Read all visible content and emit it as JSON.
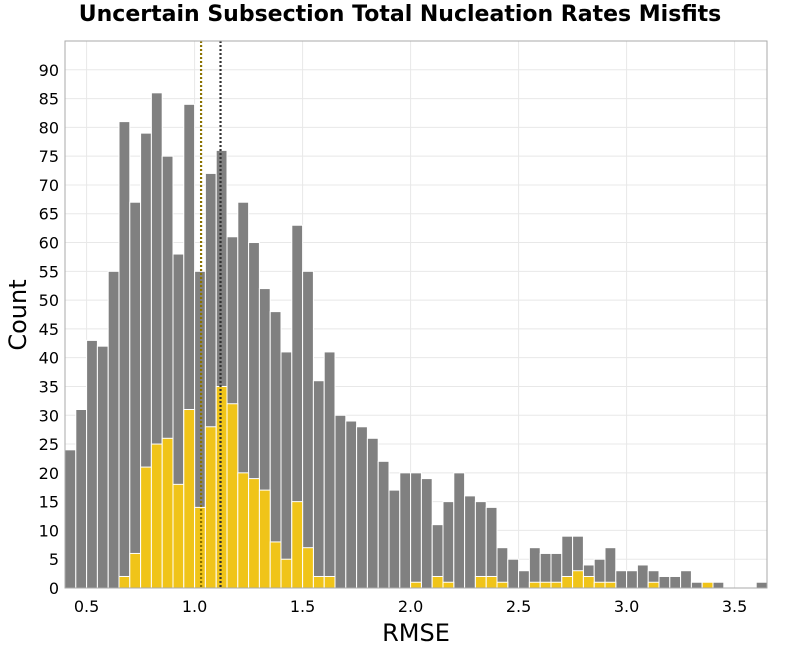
{
  "chart_data": {
    "type": "bar",
    "title": "Uncertain Subsection Total Nucleation Rates Misfits",
    "xlabel": "RMSE",
    "ylabel": "Count",
    "xlim": [
      0.4,
      3.65
    ],
    "ylim": [
      0,
      95
    ],
    "grid": true,
    "bin_width": 0.05,
    "x_ticks": [
      0.5,
      1.0,
      1.5,
      2.0,
      2.5,
      3.0,
      3.5
    ],
    "x_tick_labels": [
      "0.5",
      "1.0",
      "1.5",
      "2.0",
      "2.5",
      "3.0",
      "3.5"
    ],
    "y_ticks": [
      0,
      5,
      10,
      15,
      20,
      25,
      30,
      35,
      40,
      45,
      50,
      55,
      60,
      65,
      70,
      75,
      80,
      85,
      90
    ],
    "y_tick_labels": [
      "0",
      "5",
      "10",
      "15",
      "20",
      "25",
      "30",
      "35",
      "40",
      "45",
      "50",
      "55",
      "60",
      "65",
      "70",
      "75",
      "80",
      "85",
      "90"
    ],
    "bin_starts": [
      0.4,
      0.45,
      0.5,
      0.55,
      0.6,
      0.65,
      0.7,
      0.75,
      0.8,
      0.85,
      0.9,
      0.95,
      1.0,
      1.05,
      1.1,
      1.15,
      1.2,
      1.25,
      1.3,
      1.35,
      1.4,
      1.45,
      1.5,
      1.55,
      1.6,
      1.65,
      1.7,
      1.75,
      1.8,
      1.85,
      1.9,
      1.95,
      2.0,
      2.05,
      2.1,
      2.15,
      2.2,
      2.25,
      2.3,
      2.35,
      2.4,
      2.45,
      2.5,
      2.55,
      2.6,
      2.65,
      2.7,
      2.75,
      2.8,
      2.85,
      2.9,
      2.95,
      3.0,
      3.05,
      3.1,
      3.15,
      3.2,
      3.25,
      3.3,
      3.35,
      3.4,
      3.45,
      3.5,
      3.55,
      3.6
    ],
    "series": [
      {
        "color": "#808080",
        "values": [
          24,
          31,
          43,
          42,
          55,
          81,
          67,
          79,
          86,
          75,
          58,
          84,
          55,
          72,
          76,
          61,
          67,
          60,
          52,
          48,
          41,
          63,
          55,
          36,
          41,
          30,
          29,
          28,
          26,
          22,
          17,
          20,
          20,
          19,
          11,
          15,
          20,
          16,
          15,
          14,
          7,
          5,
          3,
          7,
          6,
          6,
          9,
          9,
          4,
          5,
          7,
          3,
          3,
          4,
          3,
          2,
          2,
          3,
          1,
          1,
          1,
          0,
          0,
          0,
          1
        ]
      },
      {
        "color": "#f0c419",
        "values": [
          0,
          0,
          0,
          0,
          0,
          2,
          6,
          21,
          25,
          26,
          18,
          31,
          14,
          28,
          35,
          32,
          20,
          19,
          17,
          8,
          5,
          15,
          7,
          2,
          2,
          0,
          0,
          0,
          0,
          0,
          0,
          0,
          1,
          0,
          2,
          1,
          0,
          0,
          2,
          2,
          1,
          0,
          0,
          1,
          1,
          1,
          2,
          3,
          2,
          1,
          1,
          0,
          0,
          0,
          1,
          0,
          0,
          0,
          0,
          1,
          0,
          0,
          0,
          0,
          0
        ]
      }
    ],
    "vlines": [
      {
        "x": 1.03,
        "color": "#8b7300",
        "style": "dotted"
      },
      {
        "x": 1.12,
        "color": "#333333",
        "style": "dotted"
      }
    ]
  }
}
